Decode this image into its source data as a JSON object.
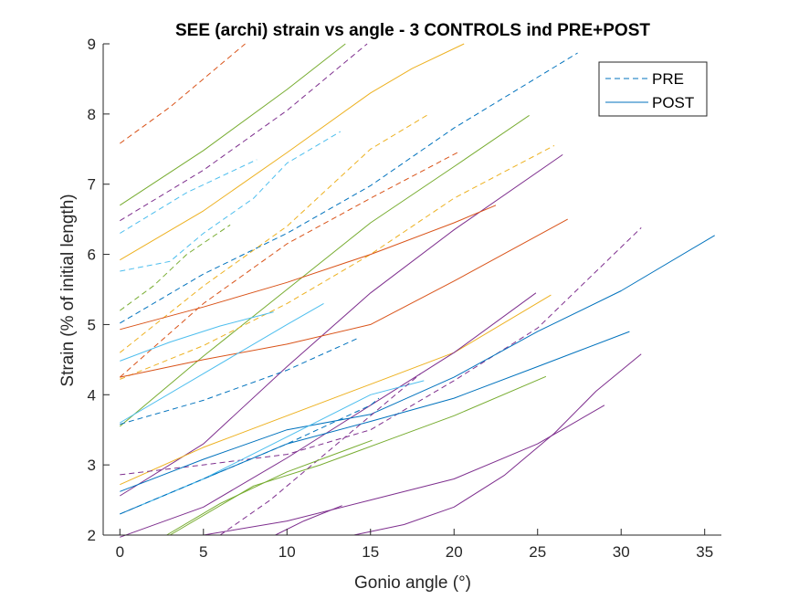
{
  "chart_data": {
    "type": "line",
    "title": "SEE (archi) strain vs angle - 3 CONTROLS ind PRE+POST",
    "xlabel": "Gonio angle (°)",
    "ylabel": "Strain (% of initial length)",
    "xlim": [
      -1,
      36
    ],
    "ylim": [
      2,
      9
    ],
    "xticks": [
      0,
      5,
      10,
      15,
      20,
      25,
      30,
      35
    ],
    "yticks": [
      2,
      3,
      4,
      5,
      6,
      7,
      8,
      9
    ],
    "legend": {
      "placement": "top-right",
      "entries": [
        {
          "label": "PRE",
          "style": "dashed",
          "color": "#0072BD"
        },
        {
          "label": "POST",
          "style": "solid",
          "color": "#0072BD"
        }
      ]
    },
    "series": [
      {
        "style": "dashed",
        "color": "#D95319",
        "x": [
          0,
          3,
          7.5
        ],
        "y": [
          7.58,
          8.1,
          9.0
        ]
      },
      {
        "style": "solid",
        "color": "#77AC30",
        "x": [
          0,
          5,
          10,
          13.5
        ],
        "y": [
          6.7,
          7.48,
          8.35,
          9.0
        ]
      },
      {
        "style": "dashed",
        "color": "#7E2F8E",
        "x": [
          0,
          5,
          10,
          14.8
        ],
        "y": [
          6.48,
          7.2,
          8.05,
          9.0
        ]
      },
      {
        "style": "dashed",
        "color": "#4DBEEE",
        "x": [
          0,
          4,
          8.2
        ],
        "y": [
          6.3,
          6.88,
          7.35
        ]
      },
      {
        "style": "solid",
        "color": "#EDB120",
        "x": [
          0,
          5,
          10,
          15,
          17.5,
          20.6
        ],
        "y": [
          5.92,
          6.62,
          7.45,
          8.3,
          8.65,
          9.0
        ]
      },
      {
        "style": "dashed",
        "color": "#0072BD",
        "x": [
          0,
          5,
          10,
          15,
          20,
          27.4
        ],
        "y": [
          5.02,
          5.72,
          6.3,
          6.98,
          7.8,
          8.87
        ]
      },
      {
        "style": "dashed",
        "color": "#EDB120",
        "x": [
          0,
          5,
          10,
          15,
          18.5
        ],
        "y": [
          4.6,
          5.55,
          6.4,
          7.5,
          8.0
        ]
      },
      {
        "style": "dashed",
        "color": "#4DBEEE",
        "x": [
          0,
          3,
          5,
          8,
          10,
          13.2
        ],
        "y": [
          5.76,
          5.9,
          6.3,
          6.8,
          7.3,
          7.75
        ]
      },
      {
        "style": "solid",
        "color": "#77AC30",
        "x": [
          0,
          5,
          10,
          15,
          20,
          24.5
        ],
        "y": [
          3.55,
          4.55,
          5.5,
          6.45,
          7.25,
          7.98
        ]
      },
      {
        "style": "dashed",
        "color": "#D95319",
        "x": [
          0,
          5,
          10,
          15,
          20.2
        ],
        "y": [
          4.25,
          5.3,
          6.15,
          6.8,
          7.45
        ]
      },
      {
        "style": "dashed",
        "color": "#EDB120",
        "x": [
          0,
          5,
          10,
          15,
          20,
          26
        ],
        "y": [
          4.22,
          4.7,
          5.3,
          6.0,
          6.8,
          7.55
        ]
      },
      {
        "style": "solid",
        "color": "#7E2F8E",
        "x": [
          0,
          5,
          10,
          15,
          20,
          26.5
        ],
        "y": [
          2.56,
          3.3,
          4.4,
          5.45,
          6.35,
          7.42
        ]
      },
      {
        "style": "solid",
        "color": "#D95319",
        "x": [
          0,
          5,
          10,
          15,
          20,
          22.5
        ],
        "y": [
          4.93,
          5.25,
          5.6,
          6.0,
          6.45,
          6.7
        ]
      },
      {
        "style": "dashed",
        "color": "#77AC30",
        "x": [
          0,
          2,
          4,
          6.6
        ],
        "y": [
          5.2,
          5.55,
          6.0,
          6.42
        ]
      },
      {
        "style": "solid",
        "color": "#D95319",
        "x": [
          0,
          5,
          10,
          15,
          20,
          26.8
        ],
        "y": [
          4.25,
          4.5,
          4.72,
          5.0,
          5.62,
          6.5
        ]
      },
      {
        "style": "solid",
        "color": "#4DBEEE",
        "x": [
          0,
          3,
          6,
          9.2
        ],
        "y": [
          4.48,
          4.75,
          4.98,
          5.18
        ]
      },
      {
        "style": "solid",
        "color": "#4DBEEE",
        "x": [
          0,
          5,
          10,
          12.2
        ],
        "y": [
          3.6,
          4.3,
          5.0,
          5.3
        ]
      },
      {
        "style": "dashed",
        "color": "#0072BD",
        "x": [
          0,
          5,
          10,
          14.2
        ],
        "y": [
          3.58,
          3.92,
          4.35,
          4.8
        ]
      },
      {
        "style": "solid",
        "color": "#EDB120",
        "x": [
          0,
          5,
          10,
          15,
          20,
          25.8
        ],
        "y": [
          2.72,
          3.25,
          3.7,
          4.15,
          4.6,
          5.42
        ]
      },
      {
        "style": "solid",
        "color": "#7E2F8E",
        "x": [
          0,
          5,
          10,
          15,
          20,
          24.9
        ],
        "y": [
          1.97,
          2.4,
          3.1,
          3.85,
          4.6,
          5.45
        ]
      },
      {
        "style": "dashed",
        "color": "#7E2F8E",
        "x": [
          0,
          5,
          10,
          15,
          20,
          25,
          31.2
        ],
        "y": [
          2.86,
          3.0,
          3.15,
          3.5,
          4.2,
          4.95,
          6.38
        ]
      },
      {
        "style": "solid",
        "color": "#0072BD",
        "x": [
          0,
          5,
          10,
          15,
          20,
          25,
          30,
          35.6
        ],
        "y": [
          2.62,
          3.08,
          3.5,
          3.72,
          4.25,
          4.9,
          5.48,
          6.27
        ]
      },
      {
        "style": "solid",
        "color": "#0072BD",
        "x": [
          0,
          5,
          10,
          15,
          20,
          25,
          30.5
        ],
        "y": [
          2.3,
          2.8,
          3.3,
          3.62,
          3.95,
          4.4,
          4.9
        ]
      },
      {
        "style": "solid",
        "color": "#77AC30",
        "x": [
          3,
          8,
          12,
          16,
          20,
          25.5
        ],
        "y": [
          2.0,
          2.7,
          3.0,
          3.35,
          3.7,
          4.26
        ]
      },
      {
        "style": "solid",
        "color": "#4DBEEE",
        "x": [
          1,
          5,
          10,
          15,
          18.2
        ],
        "y": [
          2.4,
          2.8,
          3.4,
          4.0,
          4.2
        ]
      },
      {
        "style": "dashed",
        "color": "#0072BD",
        "x": [
          0,
          5,
          10,
          15,
          15.5
        ],
        "y": [
          2.3,
          2.8,
          3.3,
          3.85,
          3.95
        ]
      },
      {
        "style": "solid",
        "color": "#7E2F8E",
        "x": [
          5,
          10,
          15,
          20,
          25,
          29
        ],
        "y": [
          2.0,
          2.2,
          2.5,
          2.8,
          3.3,
          3.85
        ]
      },
      {
        "style": "solid",
        "color": "#7E2F8E",
        "x": [
          14,
          17,
          20,
          23,
          26,
          28.5,
          31.2
        ],
        "y": [
          2.0,
          2.15,
          2.4,
          2.85,
          3.45,
          4.05,
          4.58
        ]
      },
      {
        "style": "dashed",
        "color": "#7E2F8E",
        "x": [
          6,
          9,
          12,
          15,
          18
        ],
        "y": [
          2.0,
          2.5,
          3.1,
          3.7,
          4.3
        ]
      },
      {
        "style": "solid",
        "color": "#7E2F8E",
        "x": [
          9.3,
          11,
          13.3
        ],
        "y": [
          2.0,
          2.2,
          2.42
        ]
      },
      {
        "style": "solid",
        "color": "#77AC30",
        "x": [
          2.8,
          6,
          10,
          15.1
        ],
        "y": [
          2.0,
          2.45,
          2.9,
          3.35
        ]
      }
    ]
  }
}
